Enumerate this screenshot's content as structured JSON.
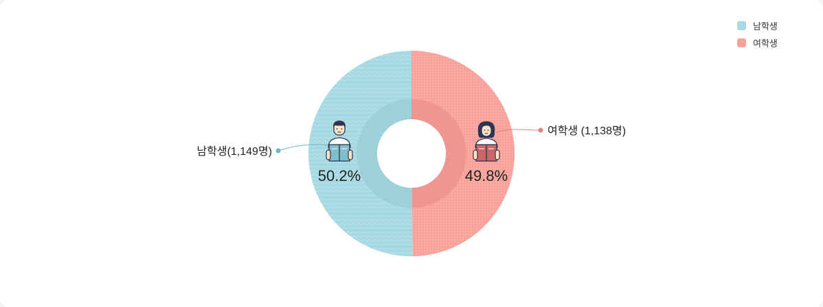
{
  "chart_data": {
    "type": "pie",
    "variant": "donut",
    "title": "",
    "categories": [
      "남학생",
      "여학생"
    ],
    "values": [
      50.2,
      49.8
    ],
    "counts": [
      1149,
      1138
    ],
    "count_labels": [
      "남학생(1,149명)",
      "여학생 (1,138명)"
    ],
    "percent_labels": [
      "50.2%",
      "49.8%"
    ],
    "colors": [
      "#a6d9e3",
      "#f7a19a"
    ],
    "inner_colors": [
      "#9dd0da",
      "#f09690"
    ],
    "legend": {
      "position": "top-right",
      "entries": [
        "남학생",
        "여학생"
      ]
    }
  },
  "icons": [
    "boy-reading-icon",
    "girl-reading-icon"
  ]
}
